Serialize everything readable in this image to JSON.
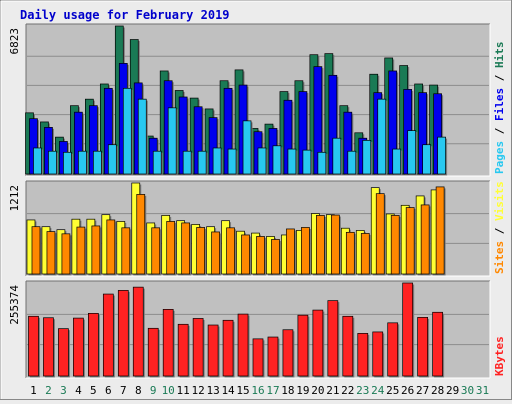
{
  "chart_data": {
    "type": "bar",
    "title": "Daily usage for February 2019",
    "categories": [
      "1",
      "2",
      "3",
      "4",
      "5",
      "6",
      "7",
      "8",
      "9",
      "10",
      "11",
      "12",
      "13",
      "14",
      "15",
      "16",
      "17",
      "18",
      "19",
      "20",
      "21",
      "22",
      "23",
      "24",
      "25",
      "26",
      "27",
      "28",
      "29",
      "30",
      "31"
    ],
    "weekend_days": [
      "2",
      "3",
      "9",
      "10",
      "16",
      "17",
      "23",
      "24",
      "30",
      "31"
    ],
    "future_days": [
      "29",
      "30",
      "31"
    ],
    "colors": {
      "background": "#ececec",
      "plot_background": "#c0c0c0",
      "title": "#0000cc",
      "hits": "#1a7a55",
      "files": "#0000ee",
      "pages": "#28c8f0",
      "visits": "#ffff33",
      "sites": "#ff8800",
      "kbytes": "#ff2222",
      "day_label": "#000000",
      "weekend_label": "#1a7a55"
    },
    "panels": [
      {
        "name": "requests",
        "max_label": "6823",
        "ylim": [
          0,
          6823
        ],
        "legend": [
          "Pages",
          "Files",
          "Hits"
        ],
        "series": [
          {
            "name": "Hits",
            "color": "#1a7a55",
            "values": [
              2820,
              2400,
              1700,
              3150,
              3450,
              4150,
              6823,
              6200,
              1750,
              4750,
              3850,
              3500,
              3000,
              4300,
              4800,
              2100,
              2300,
              3800,
              4300,
              5500,
              5550,
              3150,
              1900,
              4600,
              5350,
              5000,
              4150,
              4100
            ]
          },
          {
            "name": "Files",
            "color": "#0000ee",
            "values": [
              2550,
              2150,
              1500,
              2850,
              3150,
              3950,
              5100,
              4200,
              1650,
              4300,
              3550,
              3100,
              2600,
              3950,
              4100,
              1950,
              2100,
              3400,
              3800,
              4950,
              4550,
              2850,
              1650,
              3750,
              4750,
              3900,
              3750,
              3700
            ]
          },
          {
            "name": "Pages",
            "color": "#28c8f0",
            "values": [
              1200,
              1050,
              1000,
              1050,
              1050,
              1350,
              3950,
              3450,
              1050,
              3050,
              1050,
              1050,
              1200,
              1150,
              2450,
              1200,
              1300,
              1150,
              1100,
              1000,
              1650,
              1050,
              1550,
              3450,
              1150,
              2000,
              1350,
              1700
            ]
          }
        ]
      },
      {
        "name": "visitors",
        "max_label": "1212",
        "ylim": [
          0,
          1212
        ],
        "legend": [
          "Sites",
          "Visits"
        ],
        "series": [
          {
            "name": "Visits",
            "color": "#ffff33",
            "values": [
              720,
              630,
              590,
              730,
              730,
              790,
              700,
              1212,
              680,
              780,
              710,
              660,
              630,
              710,
              570,
              545,
              500,
              520,
              580,
              805,
              790,
              610,
              580,
              1150,
              800,
              915,
              1040,
              1120
            ]
          },
          {
            "name": "Sites",
            "color": "#ff8800",
            "values": [
              630,
              565,
              535,
              625,
              640,
              720,
              615,
              1060,
              615,
              700,
              680,
              620,
              560,
              615,
              520,
              500,
              460,
              600,
              620,
              780,
              785,
              555,
              540,
              1070,
              780,
              885,
              920,
              1160
            ]
          }
        ]
      },
      {
        "name": "kbytes",
        "max_label": "255374",
        "ylim": [
          0,
          255374
        ],
        "legend": [
          "KBytes"
        ],
        "series": [
          {
            "name": "KBytes",
            "color": "#ff2222",
            "values": [
              164000,
              160000,
              130000,
              159000,
              172000,
              225000,
              235000,
              244000,
              131000,
              183000,
              142000,
              158000,
              140000,
              153000,
              170000,
              102000,
              107000,
              127000,
              167000,
              181000,
              207000,
              164000,
              117000,
              121000,
              146000,
              255374,
              161000,
              175000
            ]
          }
        ]
      }
    ]
  }
}
